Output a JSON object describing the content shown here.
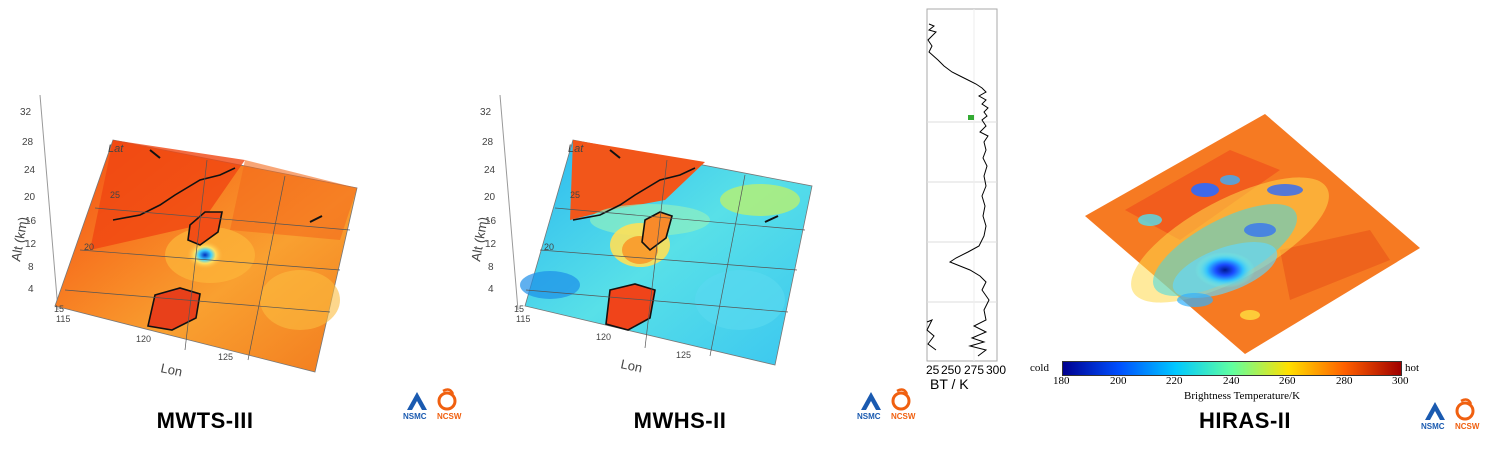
{
  "panels": [
    {
      "id": "mwts",
      "title": "MWTS-III",
      "alt_label": "Alt (km)",
      "lat_label": "Lat",
      "lon_label": "Lon",
      "alt_ticks": [
        "4",
        "8",
        "12",
        "16",
        "20",
        "24",
        "28",
        "32"
      ],
      "lat_ticks": [
        "15",
        "20",
        "25"
      ],
      "lon_ticks": [
        "115",
        "120",
        "125"
      ]
    },
    {
      "id": "mwhs",
      "title": "MWHS-II",
      "alt_label": "Alt (km)",
      "lat_label": "Lat",
      "lon_label": "Lon",
      "alt_ticks": [
        "4",
        "8",
        "12",
        "16",
        "20",
        "24",
        "28",
        "32"
      ],
      "lat_ticks": [
        "15",
        "20",
        "25"
      ],
      "lon_ticks": [
        "115",
        "120",
        "125"
      ]
    },
    {
      "id": "hiras",
      "title": "HIRAS-II"
    }
  ],
  "profile": {
    "xlabel": "BT / K",
    "xticks": [
      "25",
      "250",
      "275",
      "300"
    ]
  },
  "colorbar": {
    "left_label": "cold",
    "right_label": "hot",
    "title": "Brightness Temperature/K",
    "ticks": [
      "180",
      "200",
      "220",
      "240",
      "260",
      "280",
      "300"
    ],
    "colors": [
      "#00008f",
      "#0050ff",
      "#00c8ff",
      "#60ffa0",
      "#ffe000",
      "#ff6000",
      "#a00000"
    ]
  },
  "logos": {
    "nsmc": "NSMC",
    "ncsw": "NCSW"
  }
}
